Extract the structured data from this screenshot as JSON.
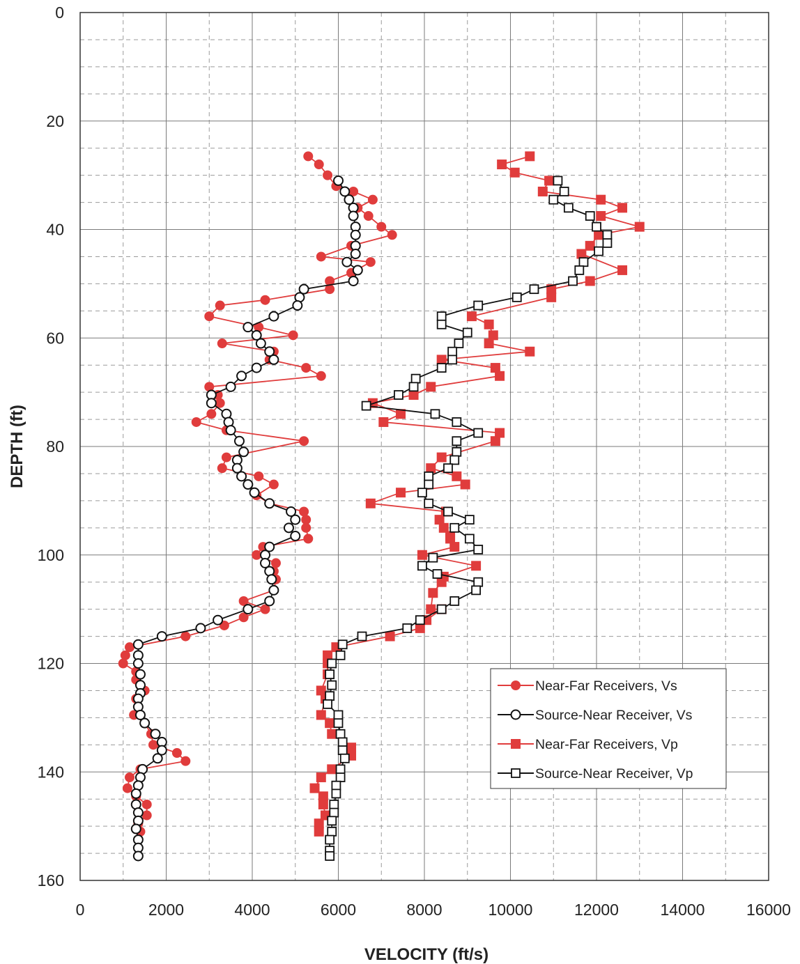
{
  "chart_data": {
    "type": "scatter",
    "title": "",
    "xlabel": "VELOCITY (ft/s)",
    "ylabel": "DEPTH (ft)",
    "xlim": [
      0,
      16000
    ],
    "ylim": [
      0,
      160
    ],
    "y_inverted": true,
    "x_ticks": [
      0,
      2000,
      4000,
      6000,
      8000,
      10000,
      12000,
      14000,
      16000
    ],
    "y_ticks": [
      0,
      20,
      40,
      60,
      80,
      100,
      120,
      140,
      160
    ],
    "x_tick_labels": [
      "0",
      "2000",
      "4000",
      "6000",
      "8000",
      "10000",
      "12000",
      "14000",
      "16000"
    ],
    "y_tick_labels": [
      "0",
      "20",
      "40",
      "60",
      "80",
      "100",
      "120",
      "140",
      "160"
    ],
    "grid": "major solid, minor dashed",
    "legend_position": "lower-right",
    "series": [
      {
        "name": "Near-Far Receivers, Vs",
        "color": "#e03c3c",
        "marker": "filled-circle",
        "points": [
          [
            5300,
            26.5
          ],
          [
            5550,
            28
          ],
          [
            5750,
            30
          ],
          [
            5950,
            32
          ],
          [
            6350,
            33
          ],
          [
            6800,
            34.5
          ],
          [
            6450,
            36
          ],
          [
            6700,
            37.5
          ],
          [
            7000,
            39.5
          ],
          [
            7250,
            41
          ],
          [
            6300,
            43
          ],
          [
            5600,
            45
          ],
          [
            6750,
            46
          ],
          [
            6300,
            48
          ],
          [
            5800,
            49.5
          ],
          [
            5800,
            51
          ],
          [
            4300,
            53
          ],
          [
            3250,
            54
          ],
          [
            3000,
            56
          ],
          [
            4150,
            58
          ],
          [
            4950,
            59.5
          ],
          [
            3300,
            61
          ],
          [
            4500,
            62.5
          ],
          [
            4400,
            64
          ],
          [
            5250,
            65.5
          ],
          [
            5600,
            67
          ],
          [
            3000,
            69
          ],
          [
            3200,
            70.5
          ],
          [
            3250,
            72
          ],
          [
            3050,
            74
          ],
          [
            2700,
            75.5
          ],
          [
            3400,
            77
          ],
          [
            5200,
            79
          ],
          [
            3400,
            82
          ],
          [
            3300,
            84
          ],
          [
            4150,
            85.5
          ],
          [
            4500,
            87
          ],
          [
            4100,
            89
          ],
          [
            4400,
            90.5
          ],
          [
            5200,
            92
          ],
          [
            5250,
            93.5
          ],
          [
            5250,
            95
          ],
          [
            5300,
            97
          ],
          [
            4250,
            98.5
          ],
          [
            4100,
            100
          ],
          [
            4550,
            101.5
          ],
          [
            4500,
            103
          ],
          [
            4550,
            104.5
          ],
          [
            4500,
            106.5
          ],
          [
            3800,
            108.5
          ],
          [
            4300,
            110
          ],
          [
            3800,
            111.5
          ],
          [
            3350,
            113
          ],
          [
            2450,
            115
          ],
          [
            1150,
            117
          ],
          [
            1050,
            118.5
          ],
          [
            1000,
            120
          ],
          [
            1300,
            121.5
          ],
          [
            1300,
            123
          ],
          [
            1500,
            125
          ],
          [
            1300,
            126.5
          ],
          [
            1350,
            128
          ],
          [
            1250,
            129.5
          ],
          [
            1500,
            131
          ],
          [
            1650,
            133
          ],
          [
            1700,
            135
          ],
          [
            2250,
            136.5
          ],
          [
            2450,
            138
          ],
          [
            1400,
            139.5
          ],
          [
            1150,
            141
          ],
          [
            1100,
            143
          ],
          [
            1300,
            144.5
          ],
          [
            1550,
            146
          ],
          [
            1550,
            148
          ],
          [
            1350,
            149.5
          ],
          [
            1400,
            151
          ]
        ]
      },
      {
        "name": "Source-Near Receiver, Vs",
        "color": "#111111",
        "marker": "open-circle",
        "points": [
          [
            6000,
            31
          ],
          [
            6150,
            33
          ],
          [
            6250,
            34.5
          ],
          [
            6350,
            36
          ],
          [
            6350,
            37.5
          ],
          [
            6400,
            39.5
          ],
          [
            6400,
            41
          ],
          [
            6400,
            43
          ],
          [
            6400,
            44.5
          ],
          [
            6200,
            46
          ],
          [
            6450,
            47.5
          ],
          [
            6350,
            49.5
          ],
          [
            5200,
            51
          ],
          [
            5100,
            52.5
          ],
          [
            5050,
            54
          ],
          [
            4500,
            56
          ],
          [
            3900,
            58
          ],
          [
            4100,
            59.5
          ],
          [
            4200,
            61
          ],
          [
            4400,
            62.5
          ],
          [
            4500,
            64
          ],
          [
            4100,
            65.5
          ],
          [
            3750,
            67
          ],
          [
            3500,
            69
          ],
          [
            3050,
            70.5
          ],
          [
            3050,
            72
          ],
          [
            3400,
            74
          ],
          [
            3450,
            75.5
          ],
          [
            3500,
            77
          ],
          [
            3700,
            79
          ],
          [
            3800,
            81
          ],
          [
            3650,
            82.5
          ],
          [
            3650,
            84
          ],
          [
            3750,
            85.5
          ],
          [
            3900,
            87
          ],
          [
            4050,
            88.5
          ],
          [
            4400,
            90.5
          ],
          [
            4900,
            92
          ],
          [
            5000,
            93.5
          ],
          [
            4850,
            95
          ],
          [
            5000,
            96.5
          ],
          [
            4400,
            98.5
          ],
          [
            4300,
            100
          ],
          [
            4300,
            101.5
          ],
          [
            4400,
            103
          ],
          [
            4450,
            104.5
          ],
          [
            4500,
            106.5
          ],
          [
            4400,
            108.5
          ],
          [
            3900,
            110
          ],
          [
            3200,
            112
          ],
          [
            2800,
            113.5
          ],
          [
            1900,
            115
          ],
          [
            1350,
            116.5
          ],
          [
            1350,
            118.5
          ],
          [
            1350,
            120
          ],
          [
            1400,
            122
          ],
          [
            1400,
            124
          ],
          [
            1400,
            125.5
          ],
          [
            1350,
            126.5
          ],
          [
            1350,
            128
          ],
          [
            1400,
            129.5
          ],
          [
            1500,
            131
          ],
          [
            1750,
            133
          ],
          [
            1900,
            134.5
          ],
          [
            1900,
            136
          ],
          [
            1800,
            137.5
          ],
          [
            1450,
            139.5
          ],
          [
            1400,
            141
          ],
          [
            1350,
            142.5
          ],
          [
            1300,
            144
          ],
          [
            1300,
            146
          ],
          [
            1350,
            147.5
          ],
          [
            1350,
            149
          ],
          [
            1300,
            150.5
          ],
          [
            1350,
            152.5
          ],
          [
            1350,
            154
          ],
          [
            1350,
            155.5
          ]
        ]
      },
      {
        "name": "Near-Far Receivers, Vp",
        "color": "#e03c3c",
        "marker": "filled-square",
        "points": [
          [
            10450,
            26.5
          ],
          [
            9800,
            28
          ],
          [
            10100,
            29.5
          ],
          [
            10900,
            31
          ],
          [
            10750,
            33
          ],
          [
            12100,
            34.5
          ],
          [
            12600,
            36
          ],
          [
            12100,
            37.5
          ],
          [
            13000,
            39.5
          ],
          [
            12050,
            41
          ],
          [
            11850,
            43
          ],
          [
            11650,
            44.5
          ],
          [
            12600,
            47.5
          ],
          [
            11850,
            49.5
          ],
          [
            10950,
            51
          ],
          [
            10950,
            52.5
          ],
          [
            9100,
            56
          ],
          [
            9500,
            57.5
          ],
          [
            9600,
            59.5
          ],
          [
            9500,
            61
          ],
          [
            10450,
            62.5
          ],
          [
            8400,
            64
          ],
          [
            9650,
            65.5
          ],
          [
            9750,
            67
          ],
          [
            8150,
            69
          ],
          [
            7750,
            70.5
          ],
          [
            6800,
            72
          ],
          [
            7450,
            74
          ],
          [
            7050,
            75.5
          ],
          [
            9750,
            77.5
          ],
          [
            9650,
            79
          ],
          [
            8400,
            82
          ],
          [
            8150,
            84
          ],
          [
            8750,
            85.5
          ],
          [
            8950,
            87
          ],
          [
            7450,
            88.5
          ],
          [
            6750,
            90.5
          ],
          [
            8500,
            92
          ],
          [
            8350,
            93.5
          ],
          [
            8450,
            95
          ],
          [
            8600,
            96.5
          ],
          [
            8600,
            97
          ],
          [
            8700,
            98.5
          ],
          [
            7950,
            100
          ],
          [
            9200,
            102
          ],
          [
            8450,
            104
          ],
          [
            8400,
            105
          ],
          [
            8200,
            107
          ],
          [
            8150,
            110
          ],
          [
            8400,
            110
          ],
          [
            8050,
            112
          ],
          [
            7900,
            113.5
          ],
          [
            7200,
            115
          ],
          [
            5950,
            117
          ],
          [
            5750,
            118.5
          ],
          [
            5750,
            120
          ],
          [
            5750,
            122
          ],
          [
            5600,
            125
          ],
          [
            5700,
            126.5
          ],
          [
            5600,
            129.5
          ],
          [
            5800,
            131
          ],
          [
            5850,
            133
          ],
          [
            6300,
            135.5
          ],
          [
            6300,
            137
          ],
          [
            5850,
            139.5
          ],
          [
            5600,
            141
          ],
          [
            5450,
            143
          ],
          [
            5650,
            144.5
          ],
          [
            5650,
            146
          ],
          [
            5700,
            148
          ],
          [
            5550,
            149.5
          ],
          [
            5550,
            151
          ]
        ]
      },
      {
        "name": "Source-Near Receiver, Vp",
        "color": "#111111",
        "marker": "open-square",
        "points": [
          [
            11100,
            31
          ],
          [
            11250,
            33
          ],
          [
            11000,
            34.5
          ],
          [
            11350,
            36
          ],
          [
            11850,
            37.5
          ],
          [
            12000,
            39.5
          ],
          [
            12250,
            41
          ],
          [
            12250,
            42.5
          ],
          [
            12050,
            44
          ],
          [
            11700,
            46
          ],
          [
            11600,
            47.5
          ],
          [
            11450,
            49.5
          ],
          [
            10550,
            51
          ],
          [
            10150,
            52.5
          ],
          [
            9250,
            54
          ],
          [
            8400,
            56
          ],
          [
            8400,
            57.5
          ],
          [
            9000,
            59
          ],
          [
            8800,
            61
          ],
          [
            8650,
            62.5
          ],
          [
            8650,
            64
          ],
          [
            8400,
            65.5
          ],
          [
            7800,
            67.5
          ],
          [
            7750,
            69
          ],
          [
            7400,
            70.5
          ],
          [
            6650,
            72.5
          ],
          [
            8250,
            74
          ],
          [
            8750,
            75.5
          ],
          [
            9250,
            77.5
          ],
          [
            8750,
            79
          ],
          [
            8750,
            81
          ],
          [
            8700,
            82.5
          ],
          [
            8550,
            84
          ],
          [
            8100,
            85.5
          ],
          [
            8100,
            87
          ],
          [
            7950,
            88.5
          ],
          [
            8100,
            90.5
          ],
          [
            8550,
            92
          ],
          [
            9050,
            93.5
          ],
          [
            8700,
            95
          ],
          [
            9050,
            97
          ],
          [
            9250,
            99
          ],
          [
            8200,
            100.5
          ],
          [
            7950,
            102
          ],
          [
            8300,
            103.5
          ],
          [
            9250,
            105
          ],
          [
            9200,
            106.5
          ],
          [
            8700,
            108.5
          ],
          [
            8400,
            110
          ],
          [
            7900,
            112
          ],
          [
            7600,
            113.5
          ],
          [
            6550,
            115
          ],
          [
            6100,
            116.5
          ],
          [
            6050,
            118.5
          ],
          [
            5850,
            120
          ],
          [
            5800,
            122
          ],
          [
            5850,
            124
          ],
          [
            5800,
            126
          ],
          [
            5750,
            127.5
          ],
          [
            6000,
            129.5
          ],
          [
            6000,
            131
          ],
          [
            6050,
            133
          ],
          [
            6100,
            134.5
          ],
          [
            6100,
            136
          ],
          [
            6150,
            137.5
          ],
          [
            6050,
            139.5
          ],
          [
            6050,
            141
          ],
          [
            5950,
            142.5
          ],
          [
            5950,
            144
          ],
          [
            5900,
            146
          ],
          [
            5900,
            147.5
          ],
          [
            5850,
            149
          ],
          [
            5850,
            151
          ],
          [
            5800,
            152.5
          ],
          [
            5800,
            154.5
          ],
          [
            5800,
            155.5
          ]
        ]
      }
    ]
  }
}
